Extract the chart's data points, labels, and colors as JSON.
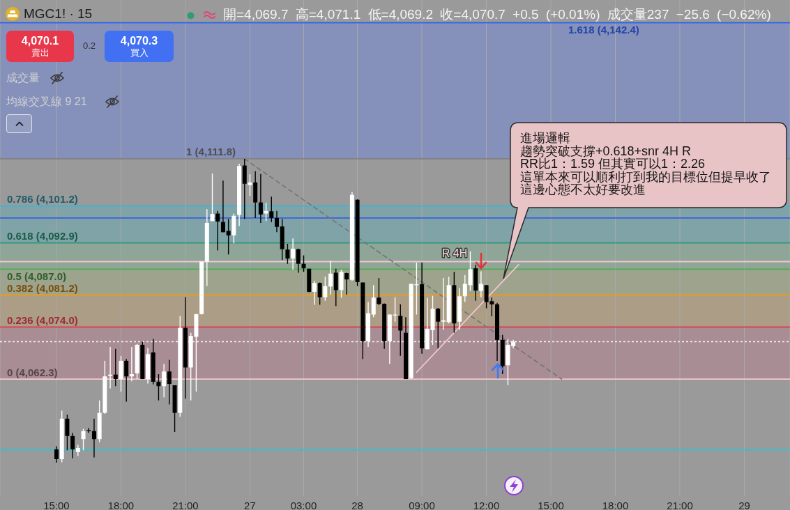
{
  "chart_data": {
    "type": "candlestick",
    "title": "MGC1! · 15",
    "subtitle": "開=4,069.7 高=4,071.1 低=4,069.2 收=4,070.7 +0.5 (+0.01%) 成交量237 −25.6 (−0.62%)",
    "categories": [
      null,
      null,
      null,
      null,
      null,
      null,
      null,
      null,
      null,
      null,
      "15:00",
      null,
      null,
      null,
      null,
      null,
      null,
      null,
      null,
      null,
      null,
      null,
      "18:00",
      null,
      null,
      null,
      null,
      null,
      null,
      null,
      null,
      null,
      null,
      null,
      "21:00",
      null,
      null,
      null,
      null,
      null,
      null,
      null,
      null,
      null,
      null,
      null,
      "27",
      null,
      null,
      null,
      null,
      null,
      null,
      null,
      null,
      null,
      "03:00",
      null,
      null,
      null,
      null,
      null,
      null,
      null,
      null,
      null,
      "28",
      null,
      null,
      null,
      null,
      null,
      null,
      null,
      null,
      null,
      null,
      null,
      "09:00",
      null,
      null,
      null,
      null,
      null,
      null,
      null,
      null,
      null,
      null,
      null,
      "12:00",
      null,
      null,
      null,
      null,
      null,
      null,
      null,
      null,
      null,
      null,
      null,
      "15:00",
      null,
      null,
      null,
      null,
      null,
      null,
      null,
      null,
      null,
      null,
      null,
      "18:00",
      null,
      null,
      null,
      null,
      null,
      null,
      null,
      null,
      null,
      null,
      null,
      "21:00",
      null,
      null,
      null,
      null,
      null,
      null,
      null,
      null,
      null,
      null,
      null,
      "29",
      null,
      null,
      null,
      null,
      null,
      null,
      null,
      null
    ],
    "ohlc": [
      null,
      null,
      null,
      null,
      null,
      null,
      null,
      null,
      null,
      null,
      [
        4046.5,
        4047.2,
        4043.5,
        4044.3
      ],
      [
        4044.3,
        4055.2,
        4043.6,
        4053.4
      ],
      [
        4053.4,
        4054.3,
        4046.3,
        4049.5
      ],
      [
        4049.5,
        4050.2,
        4044.5,
        4046.5
      ],
      [
        4045.9,
        4047.5,
        4045.0,
        4046.8
      ],
      [
        4048.8,
        4051.1,
        4046.3,
        4050.6
      ],
      [
        4050.8,
        4051.3,
        4050.2,
        4050.6
      ],
      [
        4050.6,
        4053.4,
        4044.7,
        4048.8
      ],
      [
        4048.8,
        4057.5,
        4048.1,
        4054.7
      ],
      [
        4054.7,
        4066.4,
        4054.5,
        4062.9
      ],
      [
        4063.0,
        4069.5,
        4060.2,
        4063.3
      ],
      [
        4063.3,
        4069.1,
        4060.7,
        4062.3
      ],
      [
        4062.3,
        4067.5,
        4059.5,
        4066.4
      ],
      [
        4066.4,
        4066.8,
        4057.2,
        4062.9
      ],
      [
        4062.9,
        4069.5,
        4061.8,
        4063.4
      ],
      [
        4063.6,
        4070.2,
        4062.3,
        4070.0
      ],
      [
        4070.0,
        4070.7,
        4062.3,
        4062.3
      ],
      [
        4062.3,
        4069.3,
        4061.3,
        4067.9
      ],
      [
        4068.3,
        4071.3,
        4061.1,
        4061.7
      ],
      [
        4061.7,
        4063.4,
        4057.5,
        4060.7
      ],
      [
        4060.7,
        4065.7,
        4058.2,
        4064.0
      ],
      [
        4064.0,
        4066.6,
        4056.6,
        4061.2
      ],
      [
        4060.9,
        4060.9,
        4050.4,
        4054.7
      ],
      [
        4054.7,
        4076.5,
        4053.8,
        4073.8
      ],
      [
        4073.8,
        4080.7,
        4057.9,
        4064.9
      ],
      [
        4064.9,
        4072.7,
        4057.5,
        4072.0
      ],
      [
        4071.8,
        4076.9,
        4059.5,
        4076.9
      ],
      [
        4076.9,
        4088.7,
        4076.8,
        4088.7
      ],
      [
        4088.7,
        4100.5,
        4083.2,
        4097.4
      ],
      [
        4097.8,
        4108.5,
        4097.8,
        4099.4
      ],
      [
        4099.5,
        4100.1,
        4091.2,
        4097.7
      ],
      [
        4097.6,
        4106.9,
        4095.3,
        4095.3
      ],
      [
        4095.6,
        4098.3,
        4090.3,
        4094.6
      ],
      [
        4094.6,
        4099.5,
        4092.8,
        4099.0
      ],
      [
        4099.2,
        4110.7,
        4096.7,
        4110.2
      ],
      [
        4110.3,
        4111.8,
        4098.3,
        4106.2
      ],
      [
        4105.9,
        4108.3,
        4103.5,
        4106.5
      ],
      [
        4106.5,
        4109.0,
        4098.5,
        4102.0
      ],
      [
        4102.0,
        4108.4,
        4097.4,
        4099.3
      ],
      [
        4099.5,
        4101.9,
        4097.8,
        4100.1
      ],
      [
        4100.0,
        4103.3,
        4097.6,
        4098.5
      ],
      [
        4098.5,
        4100.1,
        4095.3,
        4096.5
      ],
      [
        4096.6,
        4098.3,
        4089.1,
        4091.5
      ],
      [
        4091.4,
        4092.7,
        4088.2,
        4089.4
      ],
      [
        4089.4,
        4093.9,
        4086.9,
        4091.6
      ],
      [
        4091.5,
        4091.6,
        4086.2,
        4088.2
      ],
      [
        4088.2,
        4090.1,
        4086.4,
        4087.2
      ],
      [
        4087.1,
        4087.1,
        4081.8,
        4081.9
      ],
      [
        4081.9,
        4084.4,
        4079.0,
        4083.9
      ],
      [
        4083.9,
        4084.0,
        4079.0,
        4080.7
      ],
      [
        4080.7,
        4085.3,
        4079.9,
        4083.2
      ],
      [
        4083.1,
        4088.9,
        4081.3,
        4086.0
      ],
      [
        4086.2,
        4087.1,
        4078.7,
        4082.3
      ],
      [
        4082.3,
        4086.9,
        4080.6,
        4086.4
      ],
      [
        4086.1,
        4086.2,
        4081.3,
        4084.7
      ],
      [
        4084.6,
        4104.3,
        4084.4,
        4103.7
      ],
      [
        4102.6,
        4102.7,
        4083.2,
        4084.1
      ],
      [
        4084.0,
        4084.0,
        4066.8,
        4070.8
      ],
      [
        4070.8,
        4079.6,
        4069.5,
        4077.1
      ],
      [
        4076.8,
        4083.4,
        4076.2,
        4080.6
      ],
      [
        4080.6,
        4085.0,
        4078.9,
        4079.2
      ],
      [
        4079.2,
        4079.3,
        4069.1,
        4070.8
      ],
      [
        4070.8,
        4076.8,
        4065.7,
        4076.8
      ],
      [
        4076.6,
        4080.7,
        4075.2,
        4076.8
      ],
      [
        4076.5,
        4079.1,
        4067.5,
        4073.2
      ],
      [
        4072.7,
        4076.2,
        4062.3,
        4062.3
      ],
      [
        4062.5,
        4083.7,
        4062.3,
        4083.7
      ],
      [
        4083.4,
        4088.5,
        4076.8,
        4083.6
      ],
      [
        4083.6,
        4088.5,
        4068.0,
        4069.2
      ],
      [
        4069.0,
        4080.6,
        4069.0,
        4073.6
      ],
      [
        4073.3,
        4081.0,
        4070.0,
        4078.1
      ],
      [
        4078.1,
        4078.3,
        4069.2,
        4075.2
      ],
      [
        4075.2,
        4085.0,
        4073.4,
        4075.5
      ],
      [
        4075.1,
        4085.3,
        4074.8,
        4083.4
      ],
      [
        4083.4,
        4086.4,
        4072.7,
        4074.8
      ],
      [
        4075.2,
        4082.8,
        4073.4,
        4080.9
      ],
      [
        4080.9,
        4085.7,
        4079.6,
        4083.7
      ],
      [
        4083.4,
        4091.0,
        4082.1,
        4087.0
      ],
      [
        4087.2,
        4088.0,
        4079.9,
        4082.2
      ],
      [
        4082.1,
        4086.5,
        4080.7,
        4083.7
      ],
      [
        4083.4,
        4083.4,
        4078.2,
        4079.6
      ],
      [
        4079.8,
        4080.6,
        4076.4,
        4079.1
      ],
      [
        4079.1,
        4079.4,
        4066.4,
        4071.1
      ],
      [
        4071.1,
        4072.2,
        4063.4,
        4065.2
      ],
      [
        4065.4,
        4071.3,
        4060.9,
        4070.0
      ],
      [
        4069.7,
        4071.1,
        4069.2,
        4070.7
      ],
      null,
      null,
      null,
      null,
      null,
      null,
      null,
      null,
      null,
      null,
      null,
      null,
      null,
      null,
      null,
      null,
      null,
      null,
      null,
      null,
      null,
      null,
      null,
      null,
      null,
      null,
      null,
      null,
      null,
      null,
      null,
      null,
      null,
      null,
      null,
      null,
      null,
      null,
      null,
      null,
      null,
      null,
      null,
      null,
      null,
      null,
      null,
      null,
      null,
      null,
      null
    ],
    "colors": [
      null,
      null,
      null,
      null,
      null,
      null,
      null,
      null,
      null,
      null,
      "#000000",
      "#ffffff",
      "#000000",
      "#000000",
      "#ffffff",
      "#ffffff",
      "#000000",
      "#000000",
      "#ffffff",
      "#ffffff",
      "#ffffff",
      "#000000",
      "#ffffff",
      "#000000",
      "#ffffff",
      "#ffffff",
      "#000000",
      "#ffffff",
      "#000000",
      "#000000",
      "#ffffff",
      "#000000",
      "#000000",
      "#ffffff",
      "#000000",
      "#ffffff",
      "#ffffff",
      "#ffffff",
      "#ffffff",
      "#ffffff",
      "#000000",
      "#000000",
      "#000000",
      "#ffffff",
      "#ffffff",
      "#000000",
      "#ffffff",
      "#000000",
      "#000000",
      "#ffffff",
      "#000000",
      "#000000",
      "#000000",
      "#000000",
      "#ffffff",
      "#000000",
      "#000000",
      "#000000",
      "#ffffff",
      "#000000",
      "#ffffff",
      "#ffffff",
      "#000000",
      "#ffffff",
      "#000000",
      "#ffffff",
      "#000000",
      "#000000",
      "#ffffff",
      "#ffffff",
      "#000000",
      "#000000",
      "#ffffff",
      "#ffffff",
      "#000000",
      "#000000",
      "#ffffff",
      "#ffffff",
      "#000000",
      "#ffffff",
      "#ffffff",
      "#000000",
      "#ffffff",
      "#ffffff",
      "#000000",
      "#ffffff",
      "#ffffff",
      "#ffffff",
      "#000000",
      "#ffffff",
      "#000000",
      "#000000",
      "#000000",
      "#000000",
      "#ffffff",
      "#ffffff",
      null,
      null,
      null,
      null,
      null,
      null,
      null,
      null,
      null,
      null,
      null,
      null,
      null,
      null,
      null,
      null,
      null,
      null,
      null,
      null,
      null,
      null,
      null,
      null,
      null,
      null,
      null,
      null,
      null,
      null,
      null,
      null,
      null,
      null,
      null,
      null,
      null,
      null,
      null,
      null,
      null,
      null,
      null,
      null,
      null,
      null,
      null,
      null,
      null,
      null,
      null
    ],
    "series": [
      {
        "type": "line",
        "color": "#767676",
        "line_style": "dashed",
        "values": [
          null,
          null,
          null,
          null,
          null,
          null,
          null,
          null,
          null,
          null,
          null,
          null,
          null,
          null,
          null,
          null,
          null,
          null,
          null,
          null,
          null,
          null,
          null,
          null,
          null,
          null,
          null,
          null,
          null,
          null,
          null,
          null,
          null,
          null,
          null,
          null,
          null,
          null,
          null,
          null,
          null,
          null,
          null,
          null,
          null,
          4111.8,
          null,
          null,
          null,
          null,
          null,
          null,
          null,
          null,
          null,
          null,
          null,
          null,
          null,
          null,
          null,
          null,
          null,
          null,
          null,
          null,
          null,
          null,
          null,
          null,
          null,
          null,
          null,
          null,
          null,
          null,
          null,
          null,
          null,
          null,
          null,
          null,
          null,
          null,
          null,
          null,
          null,
          null,
          null,
          null,
          null,
          null,
          null,
          null,
          null,
          null,
          null,
          null,
          null,
          null,
          null,
          null,
          null,
          null,
          4062.3,
          null,
          null,
          null,
          null,
          null,
          null,
          null,
          null,
          null,
          null,
          null,
          null,
          null,
          null,
          null,
          null,
          null,
          null,
          null,
          null,
          null,
          null,
          null,
          null,
          null,
          null,
          null,
          null,
          null,
          null,
          null,
          null,
          null,
          null,
          null,
          null,
          null,
          null,
          null,
          null,
          null,
          null
        ]
      },
      {
        "type": "line",
        "color": "#f5c7cd",
        "values": [
          null,
          null,
          null,
          null,
          null,
          null,
          null,
          null,
          null,
          null,
          null,
          null,
          null,
          null,
          null,
          null,
          null,
          null,
          null,
          null,
          null,
          null,
          null,
          null,
          null,
          null,
          null,
          null,
          null,
          null,
          null,
          null,
          null,
          null,
          null,
          null,
          null,
          null,
          null,
          null,
          null,
          null,
          null,
          null,
          null,
          null,
          null,
          null,
          null,
          null,
          null,
          null,
          null,
          null,
          null,
          null,
          null,
          null,
          null,
          null,
          null,
          null,
          null,
          null,
          null,
          null,
          null,
          null,
          null,
          null,
          null,
          null,
          null,
          null,
          null,
          null,
          null,
          4063.8,
          null,
          null,
          null,
          null,
          null,
          null,
          null,
          null,
          null,
          null,
          null,
          null,
          null,
          null,
          null,
          null,
          null,
          null,
          4088.0,
          null,
          null,
          null,
          null,
          null,
          null,
          null,
          null,
          null,
          null,
          null,
          null,
          null,
          null,
          null,
          null,
          null,
          null,
          null,
          null,
          null,
          null,
          null,
          null,
          null,
          null,
          null,
          null,
          null,
          null,
          null,
          null,
          null,
          null,
          null,
          null,
          null,
          null,
          null,
          null,
          null,
          null,
          null,
          null,
          null,
          null,
          null,
          null,
          null,
          null
        ]
      }
    ],
    "ylim": [
      4036,
      4147.5
    ],
    "tick_labels": "x",
    "grid": "x",
    "ref_lines": [
      {
        "axis": "y",
        "value": 4142.4,
        "label": "1.618 (4,142.4)",
        "color": "#2f63f0"
      },
      {
        "axis": "y",
        "value": 4111.8,
        "label": "1 (4,111.8)",
        "color": "#818187"
      },
      {
        "axis": "y",
        "value": 4101.2,
        "label": "0.786 (4,101.2)",
        "color": "#3db6d4"
      },
      {
        "axis": "y",
        "value": 4092.9,
        "label": "0.618 (4,092.9)",
        "color": "#2a9a78"
      },
      {
        "axis": "y",
        "value": 4087.0,
        "label": "0.5 (4,087.0)",
        "color": "#4caf50"
      },
      {
        "axis": "y",
        "value": 4081.2,
        "label": "0.382 (4,081.2)",
        "color": "#f29d12"
      },
      {
        "axis": "y",
        "value": 4074.0,
        "label": "0.236 (4,074.0)",
        "color": "#e03a4e"
      },
      {
        "axis": "y",
        "value": 4062.3,
        "label": "0 (4,062.3)",
        "color": "#f5c7cd"
      },
      {
        "axis": "y",
        "value": 4070.7,
        "color": "#f2f2f2",
        "line_style": "dotted"
      },
      {
        "axis": "y",
        "value": 4088.7,
        "color": "#f5c7cd"
      },
      {
        "axis": "y",
        "value": 4098.5,
        "color": "#3a5fe0"
      },
      {
        "axis": "y",
        "value": 4046.4,
        "color": "#2ec4d0"
      }
    ],
    "bands": [
      {
        "axis": "y",
        "from": 4111.8,
        "to": 4142.4,
        "color": "#8591bb"
      },
      {
        "axis": "y",
        "from": 4092.9,
        "to": 4101.2,
        "color": "#80a3a7"
      },
      {
        "axis": "y",
        "from": 4087.0,
        "to": 4092.9,
        "color": "#8ea597"
      },
      {
        "axis": "y",
        "from": 4081.2,
        "to": 4087.0,
        "color": "#9da38c"
      },
      {
        "axis": "y",
        "from": 4074.0,
        "to": 4081.2,
        "color": "#ab9d86"
      },
      {
        "axis": "y",
        "from": 4062.3,
        "to": 4074.0,
        "color": "#a88d95"
      }
    ],
    "annotations": [
      "4,070.1",
      "賣出",
      "0.2",
      "4,070.3",
      "買入",
      "成交量",
      "均線交叉線 9 21",
      "進場邏輯",
      "趨勢突破支撐+0.618+snr 4H R",
      "RR比1：1.59 但其實可以1：2.26",
      "這單本來可以順利打到我的目標位但提早收了",
      "這邊心態不太好要改進",
      "R 4H"
    ]
  }
}
